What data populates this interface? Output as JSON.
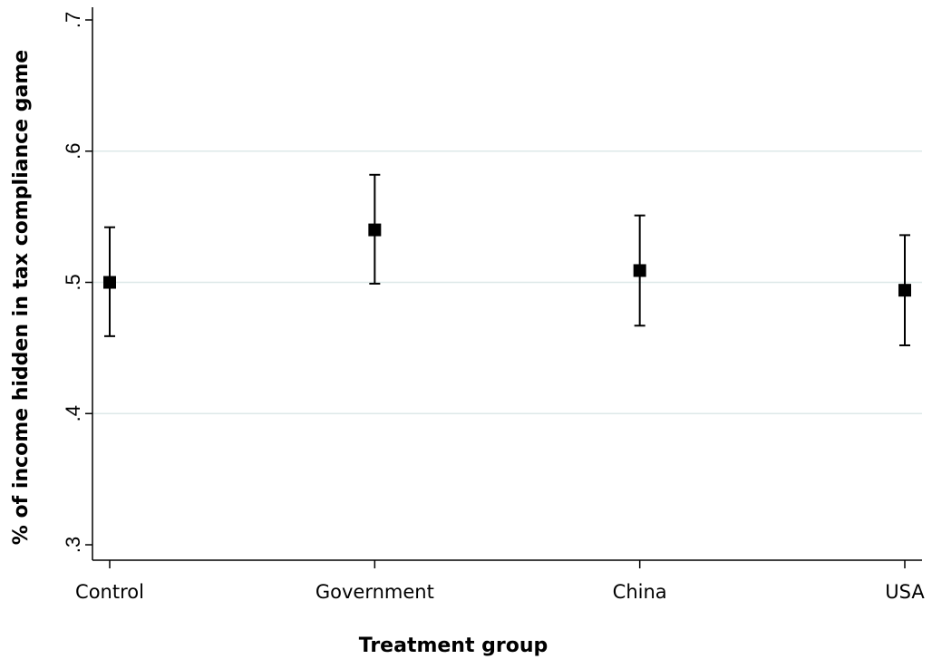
{
  "chart_data": {
    "type": "scatter",
    "title": "",
    "xlabel": "Treatment group",
    "ylabel": "% of income hidden in tax compliance game",
    "categories": [
      "Control",
      "Government",
      "China",
      "USA"
    ],
    "ylim": [
      0.3,
      0.7
    ],
    "y_ticks": [
      0.3,
      0.4,
      0.5,
      0.6,
      0.7
    ],
    "y_tick_labels": [
      ".3",
      ".4",
      ".5",
      ".6",
      ".7"
    ],
    "grid": true,
    "series": [
      {
        "values": [
          0.5,
          0.54,
          0.509,
          0.494
        ],
        "lower": [
          0.459,
          0.499,
          0.467,
          0.452
        ],
        "upper": [
          0.542,
          0.582,
          0.551,
          0.536
        ]
      }
    ],
    "colors": {
      "marker": "#000000",
      "grid": "#dde8e8",
      "axis": "#000000"
    }
  }
}
